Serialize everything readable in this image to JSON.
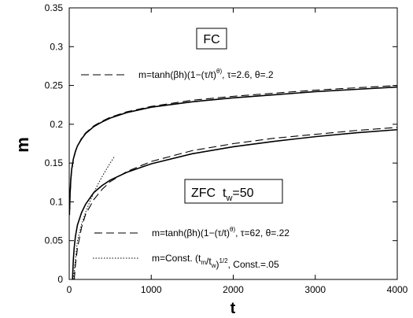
{
  "chart_data": {
    "type": "line",
    "xlabel": "t",
    "ylabel": "m",
    "xlim": [
      0,
      4000
    ],
    "ylim": [
      0,
      0.35
    ],
    "xticks": [
      "0",
      "1000",
      "2000",
      "3000",
      "4000"
    ],
    "yticks": [
      "0",
      "0.05",
      "0.1",
      "0.15",
      "0.2",
      "0.25",
      "0.3",
      "0.35"
    ],
    "grid": false,
    "annotations": {
      "fc_box": "FC",
      "fc_legend": "m=tanh(βh)(1−(τ/t)^θ), τ=2.6, θ=.2",
      "zfc_box": "ZFC  t_w=50",
      "zfc_legend_fit": "m=tanh(βh)(1−(τ/t)^θ), τ=62, θ=.22",
      "zfc_legend_power": "m=Const. (t_m/t_w)^1/2, Const.=.05"
    },
    "series": [
      {
        "style": "solid",
        "x": [
          5,
          10,
          20,
          30,
          50,
          75,
          100,
          150,
          200,
          300,
          400,
          500,
          700,
          1000,
          1500,
          2000,
          2500,
          3000,
          3500,
          4000
        ],
        "values": [
          0.09,
          0.11,
          0.13,
          0.142,
          0.155,
          0.165,
          0.172,
          0.181,
          0.188,
          0.197,
          0.203,
          0.208,
          0.215,
          0.222,
          0.229,
          0.234,
          0.238,
          0.242,
          0.245,
          0.248
        ]
      },
      {
        "style": "dashed",
        "x": [
          5,
          10,
          20,
          30,
          50,
          75,
          100,
          150,
          200,
          300,
          400,
          500,
          700,
          1000,
          1500,
          2000,
          2500,
          3000,
          3500,
          4000
        ],
        "values": [
          0.083,
          0.105,
          0.127,
          0.139,
          0.154,
          0.164,
          0.172,
          0.182,
          0.189,
          0.198,
          0.204,
          0.209,
          0.216,
          0.223,
          0.231,
          0.236,
          0.24,
          0.244,
          0.247,
          0.25
        ]
      },
      {
        "style": "solid",
        "x": [
          40,
          50,
          60,
          75,
          100,
          150,
          200,
          300,
          400,
          500,
          700,
          1000,
          1500,
          2000,
          2500,
          3000,
          3500,
          4000
        ],
        "values": [
          0.0,
          0.025,
          0.04,
          0.055,
          0.07,
          0.086,
          0.097,
          0.112,
          0.121,
          0.128,
          0.138,
          0.149,
          0.162,
          0.171,
          0.178,
          0.184,
          0.189,
          0.193
        ]
      },
      {
        "style": "dashed",
        "x": [
          62,
          70,
          80,
          100,
          150,
          200,
          300,
          400,
          500,
          700,
          1000,
          1500,
          2000,
          2500,
          3000,
          3500,
          4000
        ],
        "values": [
          0.0,
          0.012,
          0.023,
          0.04,
          0.067,
          0.084,
          0.103,
          0.116,
          0.126,
          0.139,
          0.152,
          0.166,
          0.175,
          0.182,
          0.187,
          0.192,
          0.196
        ]
      },
      {
        "style": "dotted",
        "x": [
          50,
          100,
          150,
          200,
          250,
          300,
          350,
          400,
          450,
          500,
          550
        ],
        "values": [
          0.0,
          0.05,
          0.0707,
          0.0866,
          0.1,
          0.1118,
          0.1225,
          0.1323,
          0.1414,
          0.15,
          0.1581
        ]
      }
    ]
  }
}
